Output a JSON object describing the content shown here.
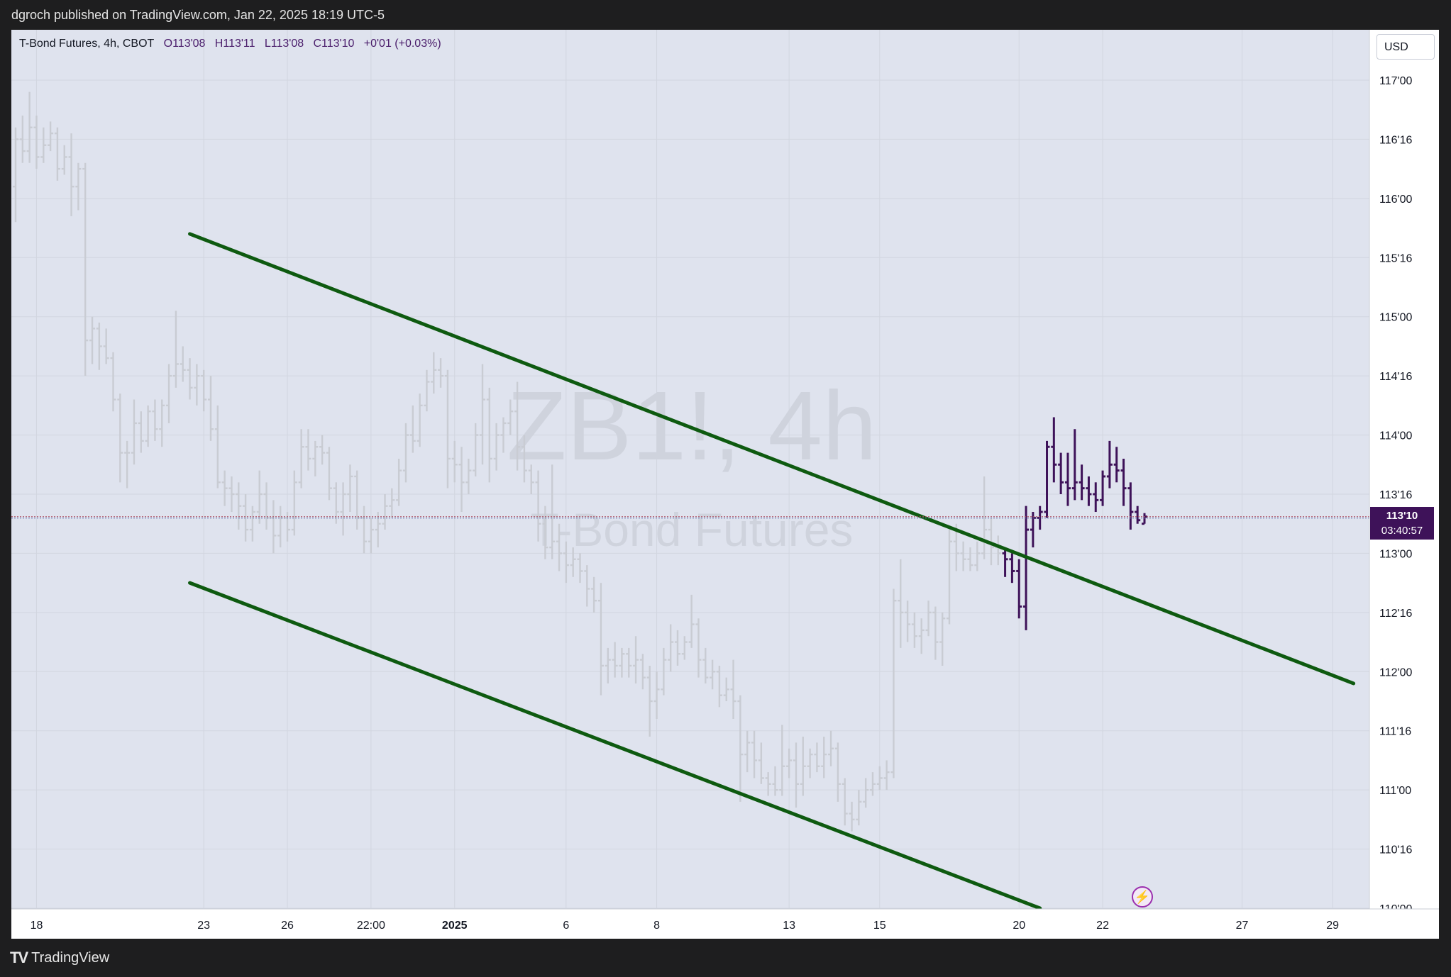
{
  "header": {
    "publisher_line": "dgroch published on TradingView.com, Jan 22, 2025 18:19 UTC-5"
  },
  "legend": {
    "instrument": "T-Bond Futures, 4h, CBOT",
    "open": "O113'08",
    "high": "H113'11",
    "low": "L113'08",
    "close": "C113'10",
    "change": "+0'01 (+0.03%)"
  },
  "watermark": {
    "symbol": "ZB1!, 4h",
    "name": "T-Bond Futures"
  },
  "currency_button": {
    "label": "USD"
  },
  "last_price_tag": {
    "price": "113'10",
    "countdown": "03:40:57"
  },
  "footer": {
    "brand": "TradingView"
  },
  "colors": {
    "trendline": "#0e5a10",
    "active_bars": "#3e1259",
    "faded_bars": "#c9ccd3",
    "background": "#dfe3ee"
  },
  "icons": {
    "logo": "tradingview-logo-icon",
    "alert": "lightning-bolt-icon"
  },
  "chart_data": {
    "type": "ohlc",
    "title": "ZB1!, 4h",
    "ylim": [
      110.0,
      117.25
    ],
    "y_ticks": [
      {
        "v": 117.0,
        "label": "117'00"
      },
      {
        "v": 116.5,
        "label": "116'16"
      },
      {
        "v": 116.0,
        "label": "116'00"
      },
      {
        "v": 115.5,
        "label": "115'16"
      },
      {
        "v": 115.0,
        "label": "115'00"
      },
      {
        "v": 114.5,
        "label": "114'16"
      },
      {
        "v": 114.0,
        "label": "114'00"
      },
      {
        "v": 113.5,
        "label": "113'16"
      },
      {
        "v": 113.0,
        "label": "113'00"
      },
      {
        "v": 112.5,
        "label": "112'16"
      },
      {
        "v": 112.0,
        "label": "112'00"
      },
      {
        "v": 111.5,
        "label": "111'16"
      },
      {
        "v": 111.0,
        "label": "111'00"
      },
      {
        "v": 110.5,
        "label": "110'16"
      },
      {
        "v": 110.0,
        "label": "110'00"
      }
    ],
    "x_ticks": [
      {
        "i": 3,
        "label": "18"
      },
      {
        "i": 27,
        "label": "23"
      },
      {
        "i": 39,
        "label": "26"
      },
      {
        "i": 51,
        "label": "22:00"
      },
      {
        "i": 63,
        "label": "2025"
      },
      {
        "i": 79,
        "label": "6"
      },
      {
        "i": 92,
        "label": "8"
      },
      {
        "i": 111,
        "label": "13"
      },
      {
        "i": 124,
        "label": "15"
      },
      {
        "i": 144,
        "label": "20"
      },
      {
        "i": 156,
        "label": "22"
      },
      {
        "i": 176,
        "label": "27"
      },
      {
        "i": 189,
        "label": "29"
      }
    ],
    "trendlines": [
      {
        "name": "",
        "from": {
          "i": 25,
          "v": 115.7
        },
        "to": {
          "i": 192,
          "v": 111.9
        }
      },
      {
        "name": "",
        "from": {
          "i": 25,
          "v": 112.75
        },
        "to": {
          "i": 147,
          "v": 110.0
        }
      }
    ],
    "last_price": 113.31,
    "bars": [
      {
        "o": 116.1,
        "h": 116.6,
        "l": 115.8,
        "c": 116.5
      },
      {
        "o": 116.5,
        "h": 116.7,
        "l": 116.3,
        "c": 116.4
      },
      {
        "o": 116.4,
        "h": 116.9,
        "l": 116.3,
        "c": 116.6
      },
      {
        "o": 116.6,
        "h": 116.7,
        "l": 116.25,
        "c": 116.35
      },
      {
        "o": 116.35,
        "h": 116.6,
        "l": 116.3,
        "c": 116.45
      },
      {
        "o": 116.45,
        "h": 116.65,
        "l": 116.4,
        "c": 116.55
      },
      {
        "o": 116.55,
        "h": 116.6,
        "l": 116.15,
        "c": 116.25
      },
      {
        "o": 116.25,
        "h": 116.45,
        "l": 116.2,
        "c": 116.35
      },
      {
        "o": 116.35,
        "h": 116.55,
        "l": 115.85,
        "c": 116.1
      },
      {
        "o": 116.1,
        "h": 116.3,
        "l": 115.9,
        "c": 116.25
      },
      {
        "o": 116.25,
        "h": 116.3,
        "l": 114.5,
        "c": 114.8
      },
      {
        "o": 114.8,
        "h": 115.0,
        "l": 114.6,
        "c": 114.9
      },
      {
        "o": 114.9,
        "h": 114.95,
        "l": 114.55,
        "c": 114.75
      },
      {
        "o": 114.75,
        "h": 114.9,
        "l": 114.6,
        "c": 114.65
      },
      {
        "o": 114.65,
        "h": 114.7,
        "l": 114.2,
        "c": 114.3
      },
      {
        "o": 114.3,
        "h": 114.35,
        "l": 113.6,
        "c": 113.85
      },
      {
        "o": 113.85,
        "h": 113.95,
        "l": 113.55,
        "c": 113.85
      },
      {
        "o": 113.85,
        "h": 114.3,
        "l": 113.75,
        "c": 114.1
      },
      {
        "o": 114.1,
        "h": 114.2,
        "l": 113.85,
        "c": 113.95
      },
      {
        "o": 113.95,
        "h": 114.25,
        "l": 113.9,
        "c": 114.2
      },
      {
        "o": 114.2,
        "h": 114.3,
        "l": 113.95,
        "c": 114.05
      },
      {
        "o": 114.05,
        "h": 114.3,
        "l": 113.9,
        "c": 114.25
      },
      {
        "o": 114.25,
        "h": 114.6,
        "l": 114.1,
        "c": 114.5
      },
      {
        "o": 114.5,
        "h": 115.05,
        "l": 114.4,
        "c": 114.6
      },
      {
        "o": 114.6,
        "h": 114.75,
        "l": 114.45,
        "c": 114.55
      },
      {
        "o": 114.55,
        "h": 114.65,
        "l": 114.3,
        "c": 114.4
      },
      {
        "o": 114.4,
        "h": 114.6,
        "l": 114.25,
        "c": 114.5
      },
      {
        "o": 114.5,
        "h": 114.55,
        "l": 114.2,
        "c": 114.3
      },
      {
        "o": 114.3,
        "h": 114.5,
        "l": 113.95,
        "c": 114.05
      },
      {
        "o": 114.05,
        "h": 114.25,
        "l": 113.55,
        "c": 113.6
      },
      {
        "o": 113.6,
        "h": 113.7,
        "l": 113.4,
        "c": 113.55
      },
      {
        "o": 113.55,
        "h": 113.65,
        "l": 113.35,
        "c": 113.5
      },
      {
        "o": 113.5,
        "h": 113.6,
        "l": 113.2,
        "c": 113.4
      },
      {
        "o": 113.4,
        "h": 113.5,
        "l": 113.1,
        "c": 113.2
      },
      {
        "o": 113.2,
        "h": 113.4,
        "l": 113.1,
        "c": 113.35
      },
      {
        "o": 113.35,
        "h": 113.7,
        "l": 113.25,
        "c": 113.5
      },
      {
        "o": 113.5,
        "h": 113.6,
        "l": 113.2,
        "c": 113.3
      },
      {
        "o": 113.3,
        "h": 113.45,
        "l": 113.0,
        "c": 113.15
      },
      {
        "o": 113.15,
        "h": 113.4,
        "l": 113.05,
        "c": 113.3
      },
      {
        "o": 113.3,
        "h": 113.35,
        "l": 113.1,
        "c": 113.2
      },
      {
        "o": 113.2,
        "h": 113.7,
        "l": 113.15,
        "c": 113.6
      },
      {
        "o": 113.6,
        "h": 114.05,
        "l": 113.55,
        "c": 113.9
      },
      {
        "o": 113.9,
        "h": 114.05,
        "l": 113.7,
        "c": 113.8
      },
      {
        "o": 113.8,
        "h": 113.95,
        "l": 113.65,
        "c": 113.9
      },
      {
        "o": 113.9,
        "h": 114.0,
        "l": 113.75,
        "c": 113.85
      },
      {
        "o": 113.85,
        "h": 113.9,
        "l": 113.45,
        "c": 113.55
      },
      {
        "o": 113.55,
        "h": 113.6,
        "l": 113.25,
        "c": 113.35
      },
      {
        "o": 113.35,
        "h": 113.6,
        "l": 113.15,
        "c": 113.5
      },
      {
        "o": 113.5,
        "h": 113.75,
        "l": 113.35,
        "c": 113.65
      },
      {
        "o": 113.65,
        "h": 113.7,
        "l": 113.2,
        "c": 113.3
      },
      {
        "o": 113.3,
        "h": 113.4,
        "l": 113.0,
        "c": 113.1
      },
      {
        "o": 113.1,
        "h": 113.3,
        "l": 113.0,
        "c": 113.2
      },
      {
        "o": 113.2,
        "h": 113.35,
        "l": 113.05,
        "c": 113.25
      },
      {
        "o": 113.25,
        "h": 113.5,
        "l": 113.2,
        "c": 113.4
      },
      {
        "o": 113.4,
        "h": 113.55,
        "l": 113.3,
        "c": 113.45
      },
      {
        "o": 113.45,
        "h": 113.8,
        "l": 113.4,
        "c": 113.7
      },
      {
        "o": 113.7,
        "h": 114.1,
        "l": 113.6,
        "c": 114.0
      },
      {
        "o": 114.0,
        "h": 114.25,
        "l": 113.85,
        "c": 113.95
      },
      {
        "o": 113.95,
        "h": 114.35,
        "l": 113.9,
        "c": 114.25
      },
      {
        "o": 114.25,
        "h": 114.55,
        "l": 114.2,
        "c": 114.45
      },
      {
        "o": 114.45,
        "h": 114.7,
        "l": 114.35,
        "c": 114.55
      },
      {
        "o": 114.55,
        "h": 114.65,
        "l": 114.4,
        "c": 114.5
      },
      {
        "o": 114.5,
        "h": 114.55,
        "l": 113.55,
        "c": 113.8
      },
      {
        "o": 113.8,
        "h": 113.95,
        "l": 113.6,
        "c": 113.75
      },
      {
        "o": 113.75,
        "h": 113.9,
        "l": 113.35,
        "c": 113.6
      },
      {
        "o": 113.6,
        "h": 113.8,
        "l": 113.5,
        "c": 113.7
      },
      {
        "o": 113.7,
        "h": 114.1,
        "l": 113.65,
        "c": 114.0
      },
      {
        "o": 114.0,
        "h": 114.6,
        "l": 113.75,
        "c": 114.3
      },
      {
        "o": 114.3,
        "h": 114.4,
        "l": 113.6,
        "c": 113.8
      },
      {
        "o": 113.8,
        "h": 114.1,
        "l": 113.7,
        "c": 114.0
      },
      {
        "o": 114.0,
        "h": 114.15,
        "l": 113.85,
        "c": 114.1
      },
      {
        "o": 114.1,
        "h": 114.3,
        "l": 114.0,
        "c": 114.2
      },
      {
        "o": 114.2,
        "h": 114.45,
        "l": 113.7,
        "c": 113.9
      },
      {
        "o": 113.9,
        "h": 114.0,
        "l": 113.6,
        "c": 113.7
      },
      {
        "o": 113.7,
        "h": 113.75,
        "l": 113.5,
        "c": 113.6
      },
      {
        "o": 113.6,
        "h": 113.7,
        "l": 113.1,
        "c": 113.25
      },
      {
        "o": 113.25,
        "h": 113.4,
        "l": 112.95,
        "c": 113.05
      },
      {
        "o": 113.05,
        "h": 113.75,
        "l": 112.95,
        "c": 113.1
      },
      {
        "o": 113.1,
        "h": 113.25,
        "l": 112.85,
        "c": 113.0
      },
      {
        "o": 113.0,
        "h": 113.1,
        "l": 112.75,
        "c": 112.9
      },
      {
        "o": 112.9,
        "h": 113.05,
        "l": 112.8,
        "c": 112.95
      },
      {
        "o": 112.95,
        "h": 113.0,
        "l": 112.75,
        "c": 112.85
      },
      {
        "o": 112.85,
        "h": 112.9,
        "l": 112.55,
        "c": 112.7
      },
      {
        "o": 112.7,
        "h": 112.8,
        "l": 112.5,
        "c": 112.6
      },
      {
        "o": 112.6,
        "h": 112.75,
        "l": 111.8,
        "c": 112.05
      },
      {
        "o": 112.05,
        "h": 112.2,
        "l": 111.9,
        "c": 112.1
      },
      {
        "o": 112.1,
        "h": 112.25,
        "l": 111.95,
        "c": 112.05
      },
      {
        "o": 112.05,
        "h": 112.2,
        "l": 111.95,
        "c": 112.15
      },
      {
        "o": 112.15,
        "h": 112.2,
        "l": 111.95,
        "c": 112.05
      },
      {
        "o": 112.05,
        "h": 112.3,
        "l": 111.9,
        "c": 112.1
      },
      {
        "o": 112.1,
        "h": 112.15,
        "l": 111.85,
        "c": 111.95
      },
      {
        "o": 111.95,
        "h": 112.05,
        "l": 111.45,
        "c": 111.75
      },
      {
        "o": 111.75,
        "h": 112.0,
        "l": 111.6,
        "c": 111.85
      },
      {
        "o": 111.85,
        "h": 112.2,
        "l": 111.8,
        "c": 112.1
      },
      {
        "o": 112.1,
        "h": 112.4,
        "l": 112.0,
        "c": 112.25
      },
      {
        "o": 112.25,
        "h": 112.35,
        "l": 112.05,
        "c": 112.15
      },
      {
        "o": 112.15,
        "h": 112.3,
        "l": 112.1,
        "c": 112.25
      },
      {
        "o": 112.25,
        "h": 112.65,
        "l": 112.2,
        "c": 112.4
      },
      {
        "o": 112.4,
        "h": 112.45,
        "l": 111.95,
        "c": 112.1
      },
      {
        "o": 112.1,
        "h": 112.2,
        "l": 111.9,
        "c": 111.95
      },
      {
        "o": 111.95,
        "h": 112.1,
        "l": 111.85,
        "c": 112.0
      },
      {
        "o": 112.0,
        "h": 112.05,
        "l": 111.7,
        "c": 111.8
      },
      {
        "o": 111.8,
        "h": 111.95,
        "l": 111.75,
        "c": 111.85
      },
      {
        "o": 111.85,
        "h": 112.1,
        "l": 111.6,
        "c": 111.75
      },
      {
        "o": 111.75,
        "h": 111.8,
        "l": 110.9,
        "c": 111.3
      },
      {
        "o": 111.3,
        "h": 111.5,
        "l": 111.15,
        "c": 111.4
      },
      {
        "o": 111.4,
        "h": 111.5,
        "l": 111.1,
        "c": 111.25
      },
      {
        "o": 111.25,
        "h": 111.4,
        "l": 111.05,
        "c": 111.1
      },
      {
        "o": 111.1,
        "h": 111.15,
        "l": 110.95,
        "c": 111.05
      },
      {
        "o": 111.05,
        "h": 111.2,
        "l": 110.95,
        "c": 111.0
      },
      {
        "o": 111.0,
        "h": 111.55,
        "l": 110.95,
        "c": 111.2
      },
      {
        "o": 111.2,
        "h": 111.35,
        "l": 111.1,
        "c": 111.25
      },
      {
        "o": 111.25,
        "h": 111.4,
        "l": 110.85,
        "c": 111.05
      },
      {
        "o": 111.05,
        "h": 111.45,
        "l": 110.95,
        "c": 111.2
      },
      {
        "o": 111.2,
        "h": 111.35,
        "l": 111.1,
        "c": 111.3
      },
      {
        "o": 111.3,
        "h": 111.4,
        "l": 111.15,
        "c": 111.2
      },
      {
        "o": 111.2,
        "h": 111.45,
        "l": 111.1,
        "c": 111.3
      },
      {
        "o": 111.3,
        "h": 111.5,
        "l": 111.2,
        "c": 111.35
      },
      {
        "o": 111.35,
        "h": 111.4,
        "l": 110.9,
        "c": 111.05
      },
      {
        "o": 111.05,
        "h": 111.1,
        "l": 110.7,
        "c": 110.8
      },
      {
        "o": 110.8,
        "h": 110.9,
        "l": 110.65,
        "c": 110.75
      },
      {
        "o": 110.75,
        "h": 111.0,
        "l": 110.7,
        "c": 110.9
      },
      {
        "o": 110.9,
        "h": 111.1,
        "l": 110.85,
        "c": 111.0
      },
      {
        "o": 111.0,
        "h": 111.15,
        "l": 110.95,
        "c": 111.05
      },
      {
        "o": 111.05,
        "h": 111.2,
        "l": 111.0,
        "c": 111.1
      },
      {
        "o": 111.1,
        "h": 111.25,
        "l": 111.0,
        "c": 111.15
      },
      {
        "o": 111.15,
        "h": 112.7,
        "l": 111.1,
        "c": 112.6
      },
      {
        "o": 112.6,
        "h": 112.95,
        "l": 112.2,
        "c": 112.5
      },
      {
        "o": 112.5,
        "h": 112.6,
        "l": 112.25,
        "c": 112.4
      },
      {
        "o": 112.4,
        "h": 112.5,
        "l": 112.2,
        "c": 112.3
      },
      {
        "o": 112.3,
        "h": 112.45,
        "l": 112.15,
        "c": 112.35
      },
      {
        "o": 112.35,
        "h": 112.6,
        "l": 112.3,
        "c": 112.5
      },
      {
        "o": 112.5,
        "h": 112.55,
        "l": 112.1,
        "c": 112.25
      },
      {
        "o": 112.25,
        "h": 112.5,
        "l": 112.05,
        "c": 112.45
      },
      {
        "o": 112.45,
        "h": 113.2,
        "l": 112.4,
        "c": 113.1
      },
      {
        "o": 113.1,
        "h": 113.25,
        "l": 112.85,
        "c": 113.0
      },
      {
        "o": 113.0,
        "h": 113.1,
        "l": 112.85,
        "c": 112.95
      },
      {
        "o": 112.95,
        "h": 113.05,
        "l": 112.85,
        "c": 112.9
      },
      {
        "o": 112.9,
        "h": 113.1,
        "l": 112.85,
        "c": 113.0
      },
      {
        "o": 113.0,
        "h": 113.65,
        "l": 112.95,
        "c": 113.2
      },
      {
        "o": 113.2,
        "h": 113.3,
        "l": 112.9,
        "c": 113.05
      },
      {
        "o": 113.05,
        "h": 113.15,
        "l": 112.9,
        "c": 113.0
      },
      {
        "o": 113.0,
        "h": 113.05,
        "l": 112.8,
        "c": 112.95,
        "active": true
      },
      {
        "o": 112.95,
        "h": 113.0,
        "l": 112.75,
        "c": 112.85,
        "active": true
      },
      {
        "o": 112.85,
        "h": 112.95,
        "l": 112.45,
        "c": 112.55,
        "active": true
      },
      {
        "o": 112.55,
        "h": 113.4,
        "l": 112.35,
        "c": 113.2,
        "active": true
      },
      {
        "o": 113.2,
        "h": 113.35,
        "l": 113.05,
        "c": 113.3,
        "active": true
      },
      {
        "o": 113.3,
        "h": 113.4,
        "l": 113.2,
        "c": 113.35,
        "active": true
      },
      {
        "o": 113.35,
        "h": 113.95,
        "l": 113.3,
        "c": 113.9,
        "active": true
      },
      {
        "o": 113.9,
        "h": 114.15,
        "l": 113.6,
        "c": 113.75,
        "active": true
      },
      {
        "o": 113.75,
        "h": 113.85,
        "l": 113.5,
        "c": 113.6,
        "active": true
      },
      {
        "o": 113.6,
        "h": 113.85,
        "l": 113.4,
        "c": 113.55,
        "active": true
      },
      {
        "o": 113.55,
        "h": 114.05,
        "l": 113.45,
        "c": 113.6,
        "active": true
      },
      {
        "o": 113.6,
        "h": 113.75,
        "l": 113.45,
        "c": 113.55,
        "active": true
      },
      {
        "o": 113.55,
        "h": 113.65,
        "l": 113.4,
        "c": 113.5,
        "active": true
      },
      {
        "o": 113.5,
        "h": 113.6,
        "l": 113.35,
        "c": 113.45,
        "active": true
      },
      {
        "o": 113.45,
        "h": 113.7,
        "l": 113.4,
        "c": 113.65,
        "active": true
      },
      {
        "o": 113.65,
        "h": 113.95,
        "l": 113.55,
        "c": 113.75,
        "active": true
      },
      {
        "o": 113.75,
        "h": 113.9,
        "l": 113.6,
        "c": 113.7,
        "active": true
      },
      {
        "o": 113.7,
        "h": 113.8,
        "l": 113.4,
        "c": 113.55,
        "active": true
      },
      {
        "o": 113.55,
        "h": 113.6,
        "l": 113.2,
        "c": 113.35,
        "active": true
      },
      {
        "o": 113.35,
        "h": 113.4,
        "l": 113.25,
        "c": 113.28,
        "active": true
      },
      {
        "o": 113.25,
        "h": 113.34,
        "l": 113.25,
        "c": 113.31,
        "active": true
      }
    ]
  }
}
